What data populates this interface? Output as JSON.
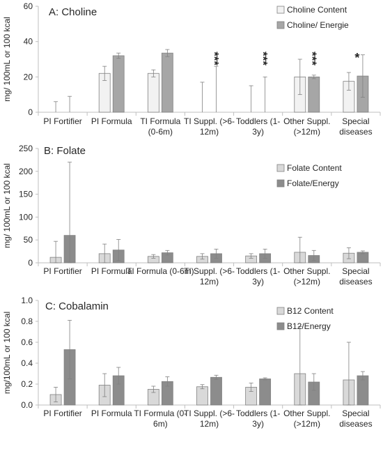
{
  "chart_data": [
    {
      "type": "bar",
      "title": "A: Choline",
      "ylabel": "mg/ 100mL or 100 kcal",
      "ylim": [
        0,
        60
      ],
      "yticks": [
        0,
        20,
        40,
        60
      ],
      "categories": [
        "PI Fortifier",
        "PI Formula",
        "TI Formula\n(0-6m)",
        "TI Suppl. (>6-\n12m)",
        "Toddlers (1-\n3y)",
        "Other Suppl.\n(>12m)",
        "Special\ndiseases"
      ],
      "series": [
        {
          "name": "Choline Content",
          "color": "#f2f2f2",
          "values": [
            0,
            22,
            22,
            0,
            0,
            20,
            17.5
          ],
          "errors": [
            6,
            4,
            2,
            17,
            15,
            10,
            5
          ]
        },
        {
          "name": "Choline/ Energie",
          "color": "#a6a6a6",
          "values": [
            0,
            32,
            33.5,
            0,
            0,
            20,
            20.5
          ],
          "errors": [
            9,
            1.5,
            2,
            26,
            20,
            1,
            12
          ]
        }
      ],
      "annotations": [
        {
          "category": 3,
          "text": "***"
        },
        {
          "category": 4,
          "text": "***"
        },
        {
          "category": 5,
          "text": "***"
        },
        {
          "category": 6,
          "text": "*"
        }
      ],
      "legend": "top-right",
      "grid": false
    },
    {
      "type": "bar",
      "title": "B: Folate",
      "ylabel": "mg/ 100mL or 100 kcal",
      "ylim": [
        0,
        250
      ],
      "yticks": [
        0,
        50,
        100,
        150,
        200,
        250
      ],
      "categories": [
        "PI Fortifier",
        "PI Formula",
        "TI Formula (0-6m)",
        "TI Suppl. (>6-\n12m)",
        "Toddlers (1-\n3y)",
        "Other Suppl.\n(>12m)",
        "Special\ndiseases"
      ],
      "series": [
        {
          "name": "Folate Content",
          "color": "#d9d9d9",
          "values": [
            12,
            20,
            14,
            14,
            15,
            23,
            21
          ],
          "errors": [
            35,
            21,
            4,
            6,
            5,
            33,
            12
          ]
        },
        {
          "name": "Folate/Energy",
          "color": "#8c8c8c",
          "values": [
            60,
            28,
            22,
            20,
            20,
            16,
            23
          ],
          "errors": [
            160,
            23,
            5,
            10,
            10,
            11,
            3
          ]
        }
      ],
      "legend": "top-right",
      "grid": false
    },
    {
      "type": "bar",
      "title": "C: Cobalamin",
      "ylabel": "mg/100mL or 100 kcal",
      "ylim": [
        0,
        1.0
      ],
      "yticks": [
        0,
        0.2,
        0.4,
        0.6,
        0.8,
        1.0
      ],
      "categories": [
        "PI Fortifier",
        "PI Formula",
        "TI Formula (0-\n6m)",
        "TI Suppl. (>6-\n12m)",
        "Toddlers (1-\n3y)",
        "Other Suppl.\n(>12m)",
        "Special\ndiseases"
      ],
      "series": [
        {
          "name": "B12 Content",
          "color": "#d9d9d9",
          "values": [
            0.1,
            0.19,
            0.15,
            0.175,
            0.17,
            0.3,
            0.24
          ],
          "errors": [
            0.07,
            0.11,
            0.03,
            0.02,
            0.04,
            0.45,
            0.36
          ]
        },
        {
          "name": "B12/Energy",
          "color": "#8c8c8c",
          "values": [
            0.53,
            0.28,
            0.225,
            0.265,
            0.25,
            0.22,
            0.28
          ],
          "errors": [
            0.28,
            0.08,
            0.045,
            0.02,
            0.01,
            0.08,
            0.04
          ]
        }
      ],
      "legend": "top-right",
      "grid": false
    }
  ]
}
